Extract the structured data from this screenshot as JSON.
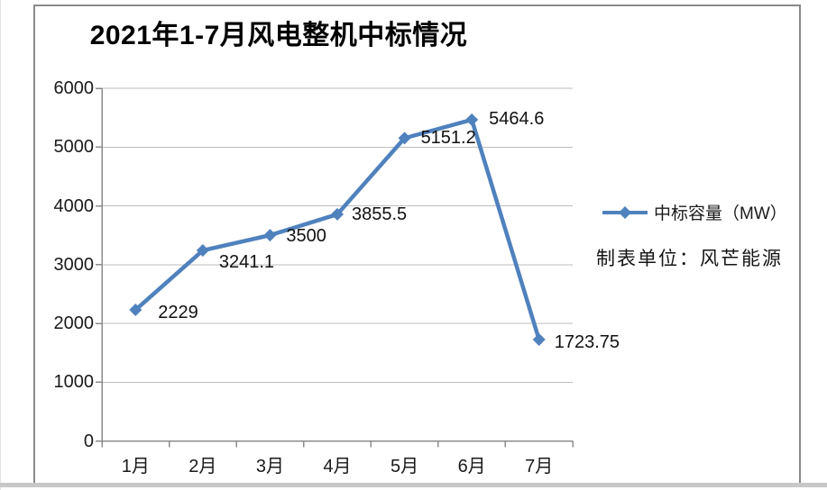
{
  "chart_data": {
    "type": "line",
    "title": "2021年1-7月风电整机中标情况",
    "categories": [
      "1月",
      "2月",
      "3月",
      "4月",
      "5月",
      "6月",
      "7月"
    ],
    "series": [
      {
        "name": "中标容量（MW）",
        "values": [
          2229,
          3241.1,
          3500,
          3855.5,
          5151.2,
          5464.6,
          1723.75
        ]
      }
    ],
    "data_labels": [
      "2229",
      "3241.1",
      "3500",
      "3855.5",
      "5151.2",
      "5464.6",
      "1723.75"
    ],
    "y_ticks": [
      0,
      1000,
      2000,
      3000,
      4000,
      5000,
      6000
    ],
    "ylim": [
      0,
      6000
    ],
    "xlabel": "",
    "ylabel": "",
    "grid": "horizontal",
    "legend_position": "right",
    "annotation": "制表单位：风芒能源",
    "colors": {
      "series_line": "#4F81BD",
      "marker": "#4878B4",
      "gridline": "#BDBDBD",
      "axis": "#8C8C8C",
      "text": "#1A1A1A",
      "frame_border": "#8A8A8A"
    }
  }
}
